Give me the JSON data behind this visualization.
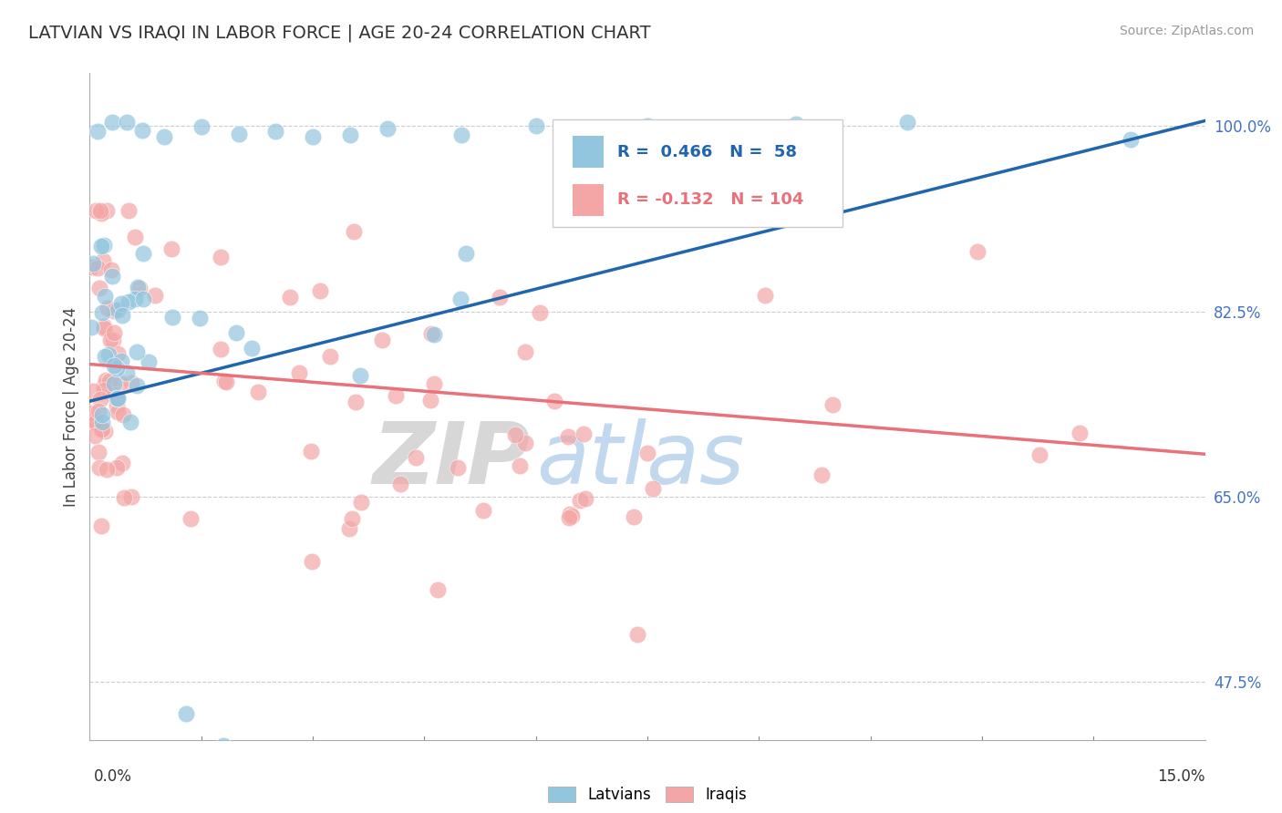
{
  "title": "LATVIAN VS IRAQI IN LABOR FORCE | AGE 20-24 CORRELATION CHART",
  "source_text": "Source: ZipAtlas.com",
  "ylabel_values": [
    47.5,
    65.0,
    82.5,
    100.0
  ],
  "ylabel_label": "In Labor Force | Age 20-24",
  "watermark_zip": "ZIP",
  "watermark_atlas": "atlas",
  "blue_R": 0.466,
  "blue_N": 58,
  "pink_R": -0.132,
  "pink_N": 104,
  "blue_color": "#92c5de",
  "pink_color": "#f4a6a6",
  "blue_line_color": "#2166ac",
  "pink_line_color": "#e8717a",
  "background_color": "#ffffff",
  "xlim": [
    0.0,
    15.0
  ],
  "ylim": [
    42.0,
    105.0
  ],
  "blue_line_x0": 0.0,
  "blue_line_y0": 74.0,
  "blue_line_x1": 15.0,
  "blue_line_y1": 100.5,
  "pink_line_x0": 0.0,
  "pink_line_y0": 77.5,
  "pink_line_x1": 15.0,
  "pink_line_y1": 69.0
}
